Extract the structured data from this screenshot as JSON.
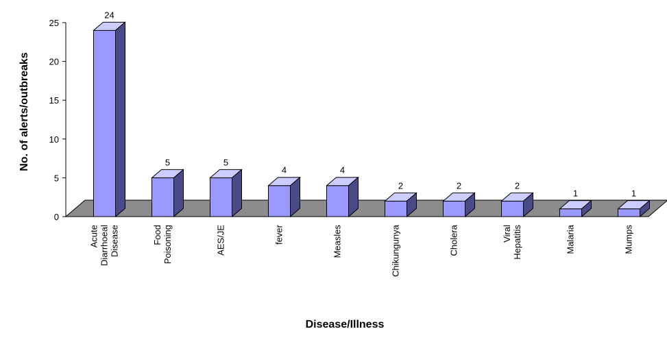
{
  "chart_data": {
    "type": "bar",
    "title": "",
    "xlabel": "Disease/Illness",
    "ylabel": "No. of alerts/outbreaks",
    "ylim": [
      0,
      25
    ],
    "yticks": [
      "0",
      "5",
      "10",
      "15",
      "20",
      "25"
    ],
    "categories": [
      [
        "Acute",
        "Diarrhoeal",
        "Disease"
      ],
      [
        "Food",
        "Poisoning"
      ],
      [
        "AES/JE"
      ],
      [
        "fever"
      ],
      [
        "Measles"
      ],
      [
        "Chikungunya"
      ],
      [
        "Cholera"
      ],
      [
        "Viral",
        "Hepatitis"
      ],
      [
        "Malaria"
      ],
      [
        "Mumps"
      ]
    ],
    "values": [
      24,
      5,
      5,
      4,
      4,
      2,
      2,
      2,
      1,
      1
    ],
    "data_labels": [
      "24",
      "5",
      "5",
      "4",
      "4",
      "2",
      "2",
      "2",
      "1",
      "1"
    ],
    "grid": false,
    "legend": "none",
    "style": "3d-column",
    "colors": {
      "bar_front": "#9999ff",
      "bar_top": "#ccccff",
      "bar_side": "#4a4a86",
      "floor": "#8c8c8c",
      "outline": "#000000"
    }
  }
}
